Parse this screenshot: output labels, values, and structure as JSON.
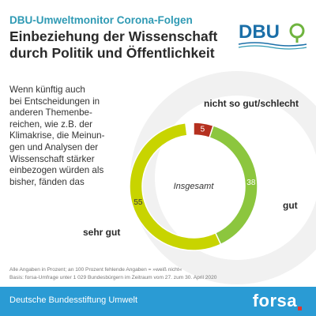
{
  "header": {
    "kicker": "DBU-Umweltmonitor Corona-Folgen",
    "title_line1": "Einbeziehung der Wissenschaft",
    "title_line2": "durch Politik und Öffentlichkeit",
    "logo_text": "DBU"
  },
  "question": {
    "lines": [
      "Wenn künftig auch",
      "bei Entscheidungen in",
      "anderen Themenbe-",
      "reichen, wie z.B. der",
      "Klimakrise, die Meinun-",
      "gen und Analysen der",
      "Wissenschaft stärker",
      "einbezogen würden als",
      "bisher, fänden das"
    ]
  },
  "chart_data": {
    "type": "pie",
    "center_label": "Insgesamt",
    "slices": [
      {
        "label": "nicht so gut/schlecht",
        "value": 5,
        "color": "#b5301f"
      },
      {
        "label": "gut",
        "value": 38,
        "color": "#8cc63e"
      },
      {
        "label": "sehr gut",
        "value": 55,
        "color": "#c8d400"
      }
    ],
    "total_scale": 100
  },
  "footnote": {
    "line1": "Alle Angaben in Prozent; an 100 Prozent fehlende Angaben = »weiß nicht«",
    "line2": "Basis: forsa-Umfrage unter 1 029 Bundesbürgern im Zeitraum vom 27. zum 30. April 2020"
  },
  "footer": {
    "organization": "Deutsche Bundesstiftung Umwelt",
    "brand": "forsa"
  },
  "colors": {
    "accent": "#2f9ab4",
    "footer_bg": "#2a9bd4",
    "logo_blue": "#1b6fa8",
    "logo_green": "#6fb43f",
    "ring_background": "#f1f1f1"
  }
}
